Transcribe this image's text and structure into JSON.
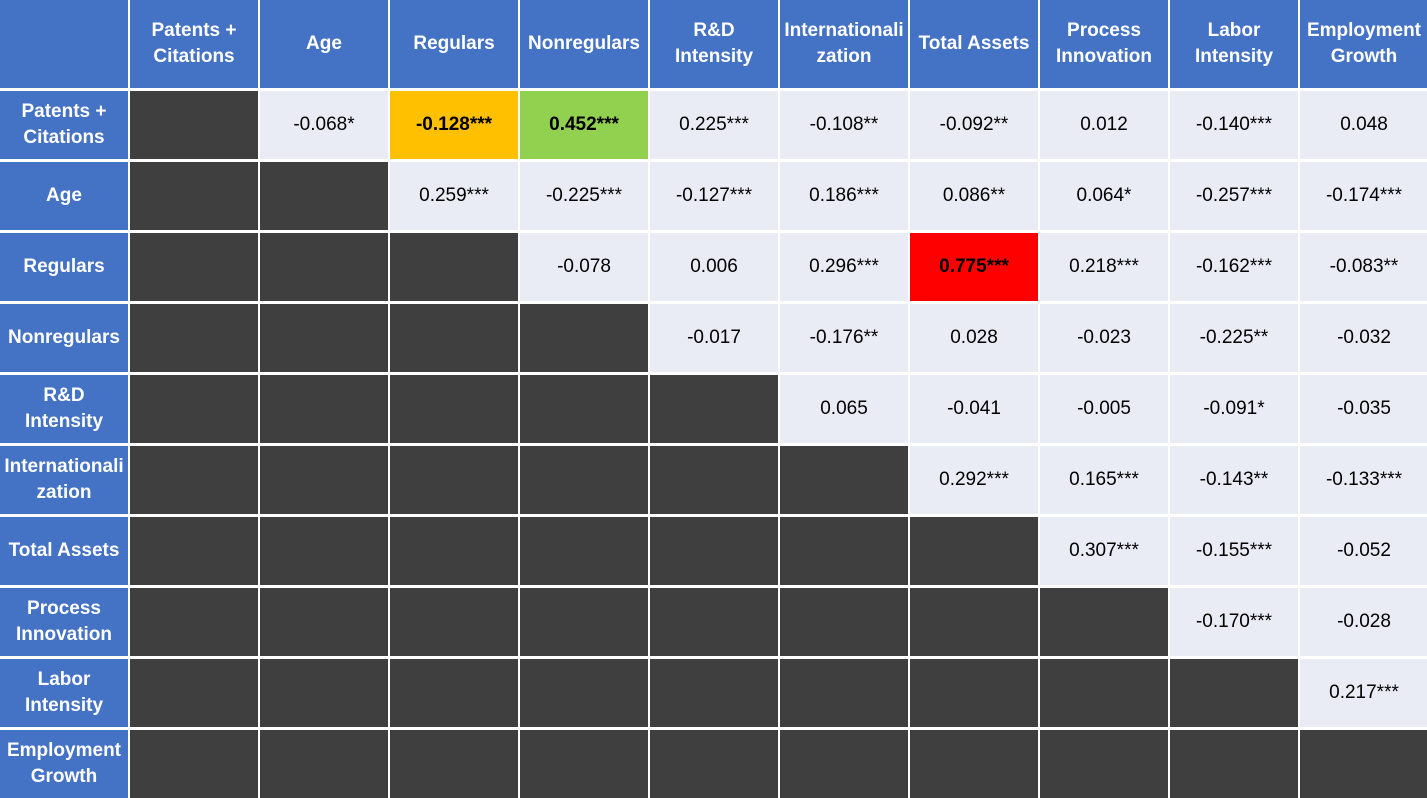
{
  "chart_data": {
    "type": "table",
    "title": "",
    "columns": [
      "Patents +\nCitations",
      "Age",
      "Regulars",
      "Nonregulars",
      "R&D Intensity",
      "Internationali\nzation",
      "Total Assets",
      "Process\nInnovation",
      "Labor\nIntensity",
      "Employment\nGrowth"
    ],
    "rows": [
      "Patents +\nCitations",
      "Age",
      "Regulars",
      "Nonregulars",
      "R&D Intensity",
      "Internationali\nzation",
      "Total Assets",
      "Process\nInnovation",
      "Labor\nIntensity",
      "Employment\nGrowth"
    ],
    "values": [
      [
        "",
        "-0.068*",
        "-0.128***",
        "0.452***",
        "0.225***",
        "-0.108**",
        "-0.092**",
        "0.012",
        "-0.140***",
        "0.048"
      ],
      [
        "",
        "",
        "0.259***",
        "-0.225***",
        "-0.127***",
        "0.186***",
        "0.086**",
        "0.064*",
        "-0.257***",
        "-0.174***"
      ],
      [
        "",
        "",
        "",
        "-0.078",
        "0.006",
        "0.296***",
        "0.775***",
        "0.218***",
        "-0.162***",
        "-0.083**"
      ],
      [
        "",
        "",
        "",
        "",
        "-0.017",
        "-0.176**",
        "0.028",
        "-0.023",
        "-0.225**",
        "-0.032"
      ],
      [
        "",
        "",
        "",
        "",
        "",
        "0.065",
        "-0.041",
        "-0.005",
        "-0.091*",
        "-0.035"
      ],
      [
        "",
        "",
        "",
        "",
        "",
        "",
        "0.292***",
        "0.165***",
        "-0.143**",
        "-0.133***"
      ],
      [
        "",
        "",
        "",
        "",
        "",
        "",
        "",
        "0.307***",
        "-0.155***",
        "-0.052"
      ],
      [
        "",
        "",
        "",
        "",
        "",
        "",
        "",
        "",
        "-0.170***",
        "-0.028"
      ],
      [
        "",
        "",
        "",
        "",
        "",
        "",
        "",
        "",
        "",
        "0.217***"
      ],
      [
        "",
        "",
        "",
        "",
        "",
        "",
        "",
        "",
        "",
        ""
      ]
    ],
    "highlights": [
      {
        "row": 0,
        "col": 2,
        "color": "#ffc000"
      },
      {
        "row": 0,
        "col": 3,
        "color": "#92d050"
      },
      {
        "row": 2,
        "col": 6,
        "color": "#ff0000"
      }
    ]
  },
  "colors": {
    "header_bg": "#4472c4",
    "header_text": "#ffffff",
    "cell_bg": "#e9ebf5",
    "masked_bg": "#3f3f3f"
  }
}
